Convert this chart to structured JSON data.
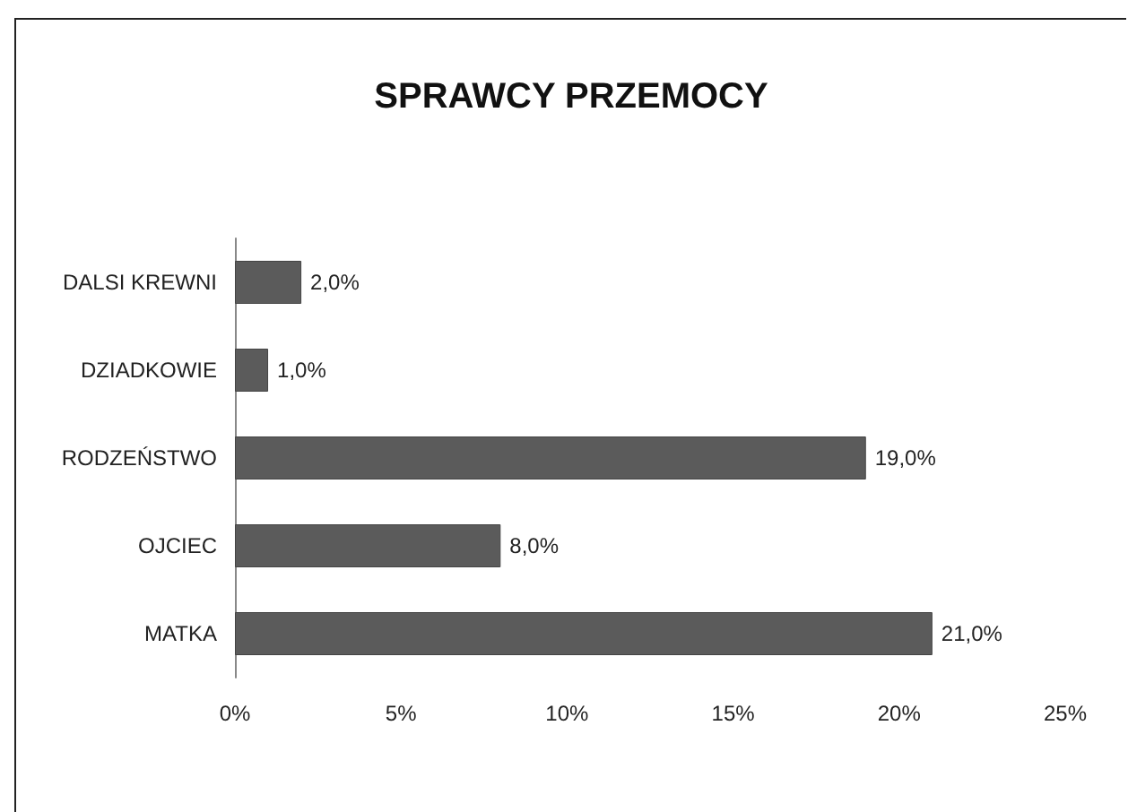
{
  "chart_data": {
    "type": "bar",
    "title": "SPRAWCY PRZEMOCY",
    "orientation": "horizontal",
    "categories": [
      "DALSI KREWNI",
      "DZIADKOWIE",
      "RODZEŃSTWO",
      "OJCIEC",
      "MATKA"
    ],
    "values": [
      2,
      1,
      19,
      8,
      21
    ],
    "value_labels": [
      "2,0%",
      "1,0%",
      "19,0%",
      "8,0%",
      "21,0%"
    ],
    "color": "#5b5b5b",
    "xlim": [
      0,
      25
    ],
    "xticks": [
      {
        "value": 0,
        "label": "0%"
      },
      {
        "value": 5,
        "label": "5%"
      },
      {
        "value": 10,
        "label": "10%"
      },
      {
        "value": 15,
        "label": "15%"
      },
      {
        "value": 20,
        "label": "20%"
      },
      {
        "value": 25,
        "label": "25%"
      }
    ],
    "grid": false
  }
}
